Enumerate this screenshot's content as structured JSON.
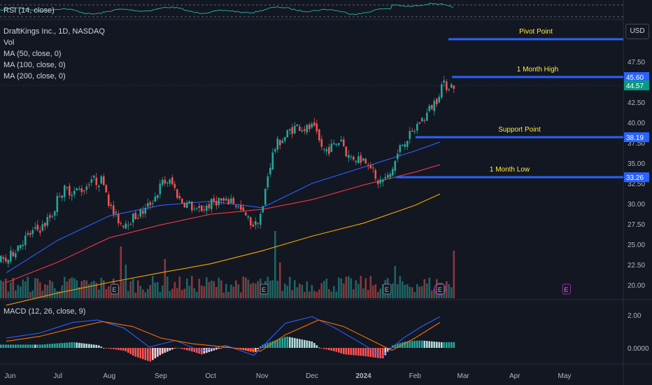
{
  "rsi": {
    "label": "RSI (14, close)"
  },
  "header": {
    "symbol": "DraftKings Inc., 1D, NASDAQ",
    "indicators": [
      "Vol",
      "MA (50, close, 0)",
      "MA (100, close, 0)",
      "MA (200, close, 0)"
    ]
  },
  "currency": "USD",
  "macd": {
    "label": "MACD (12, 26, close, 9)",
    "ticks": [
      "2.00",
      "0.0000"
    ]
  },
  "colors": {
    "background": "#131722",
    "up": "#26a69a",
    "down": "#ef5350",
    "ma50": "#2962ff",
    "ma100": "#f23645",
    "ma200": "#f7a600",
    "level_line": "#2962ff",
    "level_text": "#ffeb3b",
    "rsi_line": "#26a69a",
    "macd_line": "#2962ff",
    "signal_line": "#ff6d00"
  },
  "chart_data": {
    "type": "candlestick",
    "title": "DraftKings Inc., 1D, NASDAQ",
    "x_ticks": [
      "Jun",
      "Jul",
      "Aug",
      "Sep",
      "Oct",
      "Nov",
      "Dec",
      "2024",
      "Feb",
      "Mar",
      "Apr",
      "May"
    ],
    "y_ticks": [
      "47.50",
      "45.00",
      "42.50",
      "40.00",
      "37.50",
      "35.00",
      "32.50",
      "30.00",
      "27.50",
      "25.00",
      "22.50",
      "20.00"
    ],
    "y_range": [
      18.5,
      50
    ],
    "last_price": "44.57",
    "price_path": [
      [
        "2023-05-31",
        23.0
      ],
      [
        "2023-06-07",
        25.0
      ],
      [
        "2023-06-14",
        26.3
      ],
      [
        "2023-06-21",
        27.1
      ],
      [
        "2023-06-28",
        29.0
      ],
      [
        "2023-07-01",
        31.2
      ],
      [
        "2023-07-05",
        31.8
      ],
      [
        "2023-07-10",
        31.5
      ],
      [
        "2023-07-17",
        31.9
      ],
      [
        "2023-07-20",
        33.2
      ],
      [
        "2023-07-24",
        32.7
      ],
      [
        "2023-07-28",
        33.0
      ],
      [
        "2023-08-01",
        29.5
      ],
      [
        "2023-08-04",
        28.5
      ],
      [
        "2023-08-08",
        27.5
      ],
      [
        "2023-08-15",
        28.3
      ],
      [
        "2023-08-22",
        29.2
      ],
      [
        "2023-08-29",
        31.2
      ],
      [
        "2023-09-01",
        32.5
      ],
      [
        "2023-09-05",
        32.8
      ],
      [
        "2023-09-08",
        32.2
      ],
      [
        "2023-09-12",
        30.4
      ],
      [
        "2023-09-18",
        29.8
      ],
      [
        "2023-09-22",
        29.0
      ],
      [
        "2023-09-29",
        29.8
      ],
      [
        "2023-10-05",
        30.5
      ],
      [
        "2023-10-10",
        30.0
      ],
      [
        "2023-10-13",
        30.6
      ],
      [
        "2023-10-17",
        29.5
      ],
      [
        "2023-10-24",
        27.8
      ],
      [
        "2023-10-27",
        27.2
      ],
      [
        "2023-11-01",
        29.5
      ],
      [
        "2023-11-03",
        32.7
      ],
      [
        "2023-11-06",
        35.5
      ],
      [
        "2023-11-08",
        36.8
      ],
      [
        "2023-11-10",
        37.5
      ],
      [
        "2023-11-14",
        38.2
      ],
      [
        "2023-11-17",
        39.0
      ],
      [
        "2023-11-22",
        39.6
      ],
      [
        "2023-11-27",
        39.2
      ],
      [
        "2023-12-01",
        39.4
      ],
      [
        "2023-12-05",
        37.5
      ],
      [
        "2023-12-08",
        36.5
      ],
      [
        "2023-12-13",
        37.0
      ],
      [
        "2023-12-18",
        38.0
      ],
      [
        "2023-12-22",
        35.8
      ],
      [
        "2023-12-29",
        35.6
      ],
      [
        "2024-01-04",
        35.3
      ],
      [
        "2024-01-08",
        32.6
      ],
      [
        "2024-01-12",
        32.9
      ],
      [
        "2024-01-16",
        33.3
      ],
      [
        "2024-01-19",
        35.0
      ],
      [
        "2024-01-23",
        37.2
      ],
      [
        "2024-01-26",
        38.0
      ],
      [
        "2024-01-30",
        38.6
      ],
      [
        "2024-02-02",
        39.8
      ],
      [
        "2024-02-07",
        40.8
      ],
      [
        "2024-02-09",
        41.6
      ],
      [
        "2024-02-14",
        43.0
      ],
      [
        "2024-02-16",
        44.57
      ]
    ],
    "moving_averages": [
      {
        "name": "MA (50, close, 0)",
        "points": [
          [
            "2023-05-31",
            21.5
          ],
          [
            "2023-07-01",
            25.5
          ],
          [
            "2023-08-01",
            28.5
          ],
          [
            "2023-09-01",
            29.8
          ],
          [
            "2023-10-01",
            30.3
          ],
          [
            "2023-11-01",
            29.5
          ],
          [
            "2023-12-01",
            32.5
          ],
          [
            "2024-01-01",
            34.5
          ],
          [
            "2024-02-01",
            36.5
          ],
          [
            "2024-02-16",
            37.6
          ]
        ]
      },
      {
        "name": "MA (100, close, 0)",
        "points": [
          [
            "2023-05-31",
            20.3
          ],
          [
            "2023-07-01",
            22.8
          ],
          [
            "2023-08-01",
            25.8
          ],
          [
            "2023-09-01",
            27.4
          ],
          [
            "2023-10-01",
            28.7
          ],
          [
            "2023-11-01",
            29.3
          ],
          [
            "2023-12-01",
            30.5
          ],
          [
            "2024-01-01",
            32.3
          ],
          [
            "2024-02-01",
            33.9
          ],
          [
            "2024-02-16",
            34.8
          ]
        ]
      },
      {
        "name": "MA (200, close, 0)",
        "points": [
          [
            "2023-05-31",
            17.5
          ],
          [
            "2023-07-01",
            19.0
          ],
          [
            "2023-08-01",
            20.3
          ],
          [
            "2023-09-01",
            21.5
          ],
          [
            "2023-10-01",
            22.6
          ],
          [
            "2023-11-01",
            24.2
          ],
          [
            "2023-12-01",
            26.0
          ],
          [
            "2024-01-01",
            27.6
          ],
          [
            "2024-02-01",
            29.8
          ],
          [
            "2024-02-16",
            31.2
          ]
        ]
      }
    ],
    "levels": [
      {
        "label": "Pivot Point",
        "value": 49.7
      },
      {
        "label": "1 Month High",
        "value": 45.6,
        "tag": "45.60"
      },
      {
        "label": "Support Point",
        "value": 38.19,
        "tag": "38.19"
      },
      {
        "label": "1 Month Low",
        "value": 33.26,
        "tag": "33.26"
      }
    ],
    "earnings_markers": [
      {
        "date": "2023-08-04",
        "label": "E"
      },
      {
        "date": "2023-11-02",
        "label": "E"
      },
      {
        "date": "2024-01-15",
        "label": "E"
      },
      {
        "date": "2024-02-16",
        "label": "E"
      },
      {
        "date": "2024-05-02",
        "label": "E"
      }
    ],
    "macd_path": [
      [
        "2023-05-31",
        0.6
      ],
      [
        "2023-06-20",
        0.9
      ],
      [
        "2023-07-10",
        1.55
      ],
      [
        "2023-07-25",
        1.7
      ],
      [
        "2023-08-10",
        1.2
      ],
      [
        "2023-08-25",
        0.05
      ],
      [
        "2023-09-10",
        0.45
      ],
      [
        "2023-09-25",
        -0.2
      ],
      [
        "2023-10-10",
        0.15
      ],
      [
        "2023-10-27",
        -0.45
      ],
      [
        "2023-11-15",
        1.5
      ],
      [
        "2023-12-01",
        1.9
      ],
      [
        "2023-12-15",
        1.2
      ],
      [
        "2024-01-01",
        0.2
      ],
      [
        "2024-01-12",
        -0.5
      ],
      [
        "2024-01-25",
        0.6
      ],
      [
        "2024-02-05",
        1.3
      ],
      [
        "2024-02-16",
        1.9
      ]
    ],
    "signal_path": [
      [
        "2023-05-31",
        0.4
      ],
      [
        "2023-06-20",
        0.7
      ],
      [
        "2023-07-10",
        1.2
      ],
      [
        "2023-07-28",
        1.6
      ],
      [
        "2023-08-15",
        1.3
      ],
      [
        "2023-09-01",
        0.6
      ],
      [
        "2023-09-20",
        0.25
      ],
      [
        "2023-10-10",
        0.05
      ],
      [
        "2023-10-31",
        -0.2
      ],
      [
        "2023-11-15",
        0.8
      ],
      [
        "2023-12-05",
        1.7
      ],
      [
        "2023-12-20",
        1.3
      ],
      [
        "2024-01-05",
        0.5
      ],
      [
        "2024-01-18",
        -0.15
      ],
      [
        "2024-02-01",
        0.6
      ],
      [
        "2024-02-16",
        1.55
      ]
    ]
  }
}
